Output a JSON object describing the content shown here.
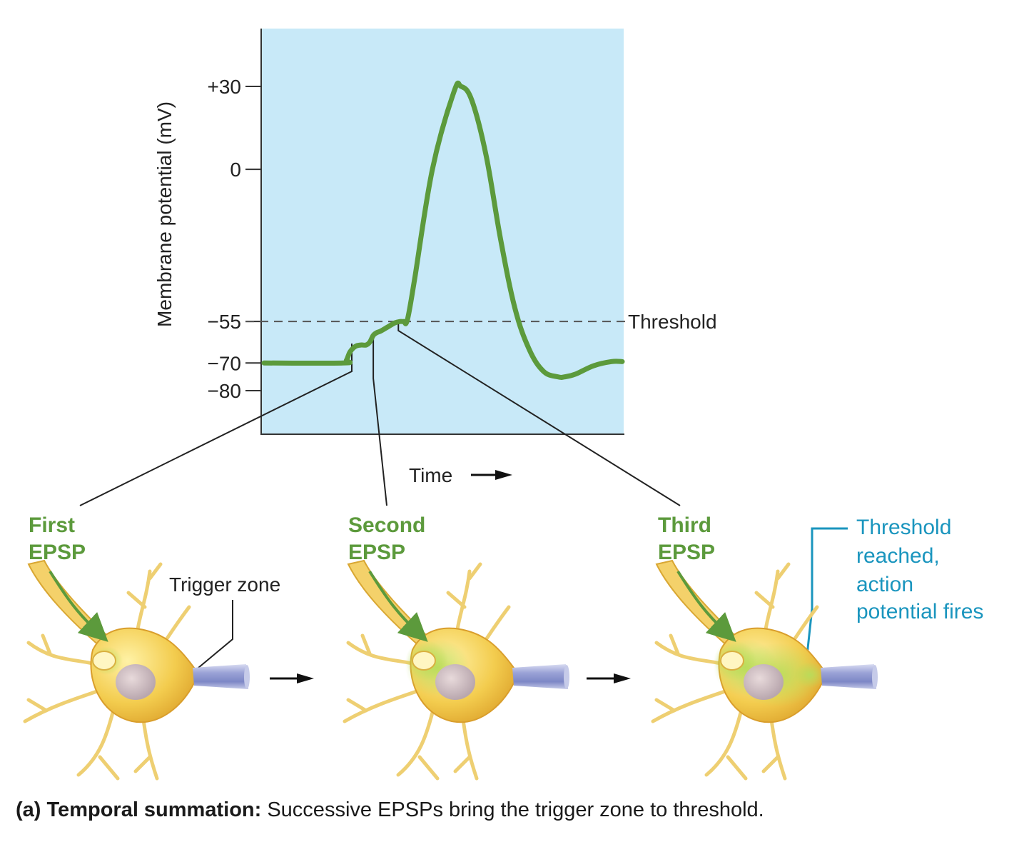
{
  "chart_data": {
    "type": "line",
    "title": "",
    "xlabel": "Time",
    "ylabel": "Membrane potential (mV)",
    "ylim": [
      -90,
      50
    ],
    "yticks": [
      30,
      0,
      -55,
      -70,
      -80
    ],
    "ytick_labels": [
      "+30",
      "0",
      "−55",
      "−70",
      "−80"
    ],
    "threshold": {
      "value": -55,
      "label": "Threshold"
    },
    "series": [
      {
        "name": "Membrane potential",
        "color": "#5c9a3c",
        "x": [
          0,
          22,
          23,
          24,
          25.5,
          27,
          28.5,
          29.5,
          30.5,
          31.5,
          32.5,
          34.5,
          36.5,
          38,
          39,
          40,
          42,
          47,
          53,
          55,
          58,
          62,
          66,
          70,
          74,
          78,
          82,
          84,
          87,
          92,
          97,
          100
        ],
        "values": [
          -70,
          -70,
          -69,
          -66,
          -64,
          -63.5,
          -63.5,
          -62.5,
          -60,
          -59,
          -58.5,
          -57,
          -55.5,
          -55,
          -55,
          -54.5,
          -40,
          0,
          28,
          30,
          25,
          5,
          -25,
          -50,
          -65,
          -73,
          -75,
          -75,
          -74,
          -71,
          -69.5,
          -69.5
        ]
      }
    ],
    "epsp_markers": [
      {
        "x": 24.5,
        "label": "First EPSP"
      },
      {
        "x": 30.5,
        "label": "Second EPSP"
      },
      {
        "x": 37.5,
        "label": "Third EPSP"
      }
    ]
  },
  "epsps": [
    {
      "line1": "First",
      "line2": "EPSP"
    },
    {
      "line1": "Second",
      "line2": "EPSP"
    },
    {
      "line1": "Third",
      "line2": "EPSP"
    }
  ],
  "trigger_zone_label": "Trigger zone",
  "threshold_reached_lines": [
    "Threshold",
    "reached,",
    "action",
    "potential fires"
  ],
  "caption": {
    "bold": "(a) Temporal summation:",
    "rest": " Successive EPSPs bring the trigger zone to threshold."
  },
  "colors": {
    "plot_bg": "#c8e9f8",
    "trace": "#5c9a3c",
    "soma": "#f2c94c",
    "axon": "#8f98cf",
    "teal": "#1a95be"
  },
  "icons": [
    "neuron-icon",
    "arrow-right-icon"
  ]
}
